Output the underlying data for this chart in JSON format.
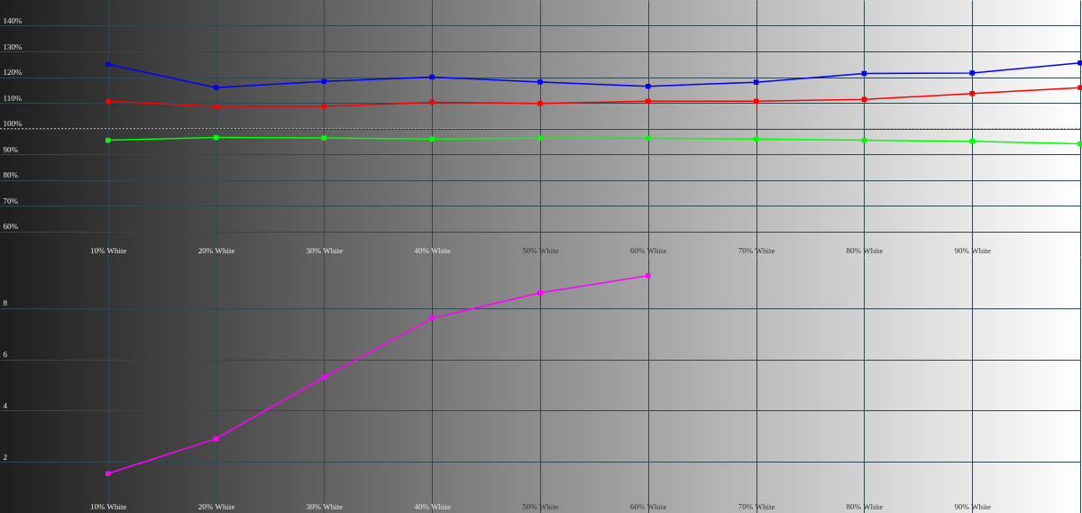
{
  "chart_data": [
    {
      "type": "line",
      "x": [
        10,
        20,
        30,
        40,
        50,
        60,
        70,
        80,
        90,
        100
      ],
      "series": [
        {
          "color": "#0000ff",
          "values": [
            125.0,
            115.9,
            118.3,
            120.0,
            118.1,
            116.4,
            118.0,
            121.4,
            121.6,
            125.5
          ]
        },
        {
          "color": "#ff0000",
          "values": [
            110.6,
            108.6,
            108.6,
            110.2,
            109.7,
            110.6,
            110.6,
            111.3,
            113.6,
            115.9
          ]
        },
        {
          "color": "#00ff00",
          "values": [
            95.4,
            96.5,
            96.3,
            95.9,
            96.2,
            96.2,
            95.9,
            95.4,
            95.0,
            94.0
          ]
        }
      ],
      "xlim": [
        0,
        100
      ],
      "xticks": [
        {
          "value": 10,
          "label": "10% White"
        },
        {
          "value": 20,
          "label": "20% White"
        },
        {
          "value": 30,
          "label": "30% White"
        },
        {
          "value": 40,
          "label": "40% White"
        },
        {
          "value": 50,
          "label": "50% White"
        },
        {
          "value": 60,
          "label": "60% White"
        },
        {
          "value": 70,
          "label": "70% White"
        },
        {
          "value": 80,
          "label": "80% White"
        },
        {
          "value": 90,
          "label": "90% White"
        },
        {
          "value": 100,
          "label": null
        }
      ],
      "ylim": [
        50,
        150
      ],
      "yticks": [
        {
          "value": 60,
          "label": "60%"
        },
        {
          "value": 70,
          "label": "70%"
        },
        {
          "value": 80,
          "label": "80%"
        },
        {
          "value": 90,
          "label": "90%"
        },
        {
          "value": 100,
          "label": "100%"
        },
        {
          "value": 110,
          "label": "110%"
        },
        {
          "value": 120,
          "label": "120%"
        },
        {
          "value": 130,
          "label": "130%"
        },
        {
          "value": 140,
          "label": "140%"
        }
      ],
      "grid": true,
      "marker": "square",
      "ref_lines": [
        {
          "axis": "y",
          "value": 100,
          "color": "#aaaaaa",
          "line_style": "dotted"
        }
      ]
    },
    {
      "type": "line",
      "x": [
        10,
        20,
        30,
        40,
        50,
        60
      ],
      "series": [
        {
          "color": "#ff00ff",
          "values": [
            1.54,
            2.9,
            5.3,
            7.61,
            8.6,
            9.27
          ]
        }
      ],
      "xlim": [
        0,
        100
      ],
      "xticks": [
        {
          "value": 10,
          "label": "10% White"
        },
        {
          "value": 20,
          "label": "20% White"
        },
        {
          "value": 30,
          "label": "30% White"
        },
        {
          "value": 40,
          "label": "40% White"
        },
        {
          "value": 50,
          "label": "50% White"
        },
        {
          "value": 60,
          "label": "60% White"
        },
        {
          "value": 70,
          "label": "70% White"
        },
        {
          "value": 80,
          "label": "80% White"
        },
        {
          "value": 90,
          "label": "90% White"
        },
        {
          "value": 100,
          "label": null
        }
      ],
      "ylim": [
        0,
        10
      ],
      "yticks": [
        2,
        4,
        6,
        8
      ],
      "grid": true,
      "marker": "square"
    }
  ]
}
